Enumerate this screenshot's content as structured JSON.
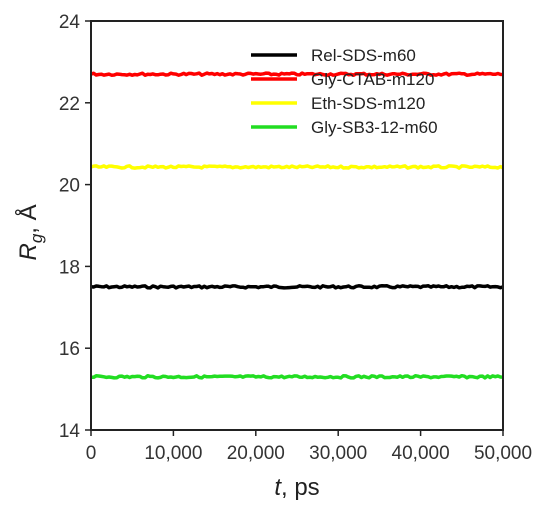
{
  "chart_data": {
    "type": "line",
    "xlabel": {
      "var": "t",
      "unit": ", ps"
    },
    "ylabel": {
      "var": "R",
      "sub": "g",
      "unit": ", Å"
    },
    "xlim": [
      0,
      50000
    ],
    "ylim": [
      14,
      24
    ],
    "x_ticks": [
      0,
      10000,
      20000,
      30000,
      40000,
      50000
    ],
    "x_tick_labels": [
      "0",
      "10,000",
      "20,000",
      "30,000",
      "40,000",
      "50,000"
    ],
    "y_ticks": [
      14,
      16,
      18,
      20,
      22,
      24
    ],
    "y_tick_labels": [
      "14",
      "16",
      "18",
      "20",
      "22",
      "24"
    ],
    "grid": false,
    "legend_position": "top-right",
    "series": [
      {
        "name": "Rel-SDS-m60",
        "color": "#000000",
        "x": [
          0,
          50000
        ],
        "values": [
          17.5,
          17.5
        ]
      },
      {
        "name": "Gly-CTAB-m120",
        "color": "#ff0000",
        "x": [
          0,
          50000
        ],
        "values": [
          22.7,
          22.7
        ]
      },
      {
        "name": "Eth-SDS-m120",
        "color": "#ffff00",
        "x": [
          0,
          50000
        ],
        "values": [
          20.43,
          20.43
        ]
      },
      {
        "name": "Gly-SB3-12-m60",
        "color": "#22dd22",
        "x": [
          0,
          50000
        ],
        "values": [
          15.3,
          15.3
        ]
      }
    ]
  }
}
